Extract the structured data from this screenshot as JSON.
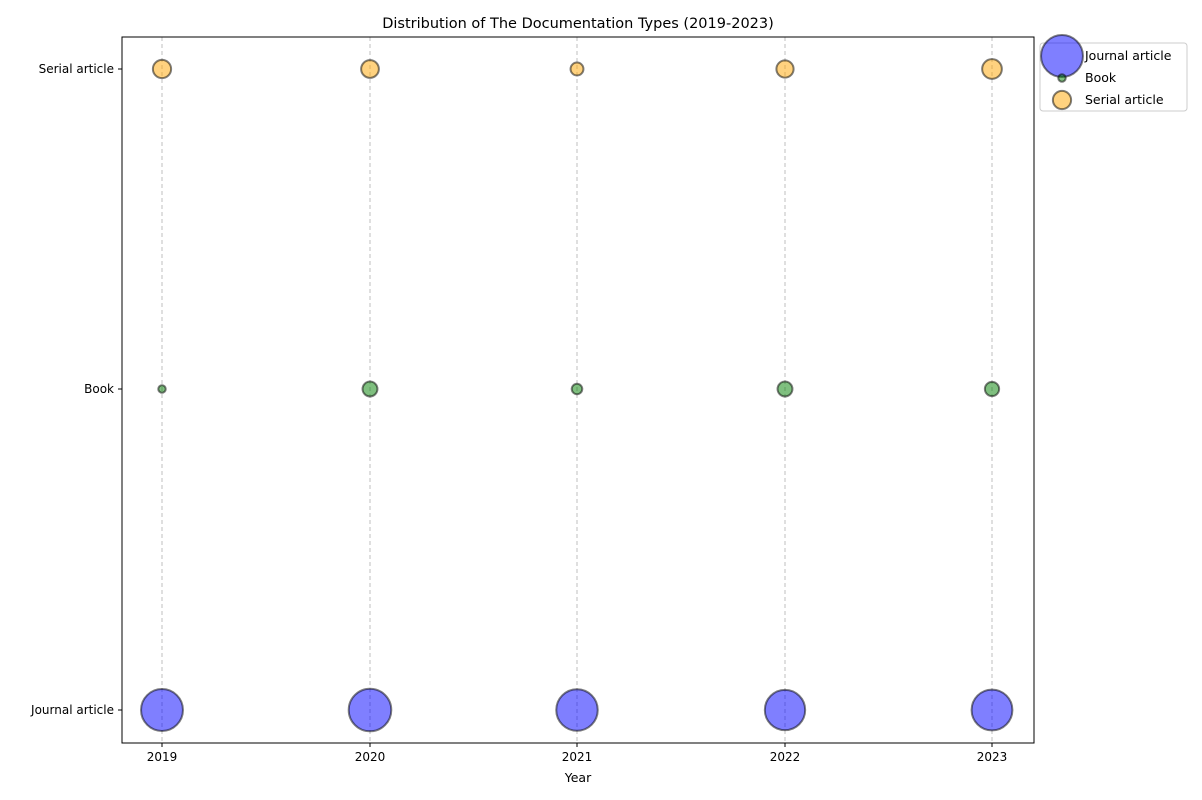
{
  "chart_data": {
    "type": "scatter",
    "title": "Distribution of The Documentation Types (2019-2023)",
    "xlabel": "Year",
    "ylabel": "",
    "x": [
      2019,
      2020,
      2021,
      2022,
      2023
    ],
    "x_tick_labels": [
      "2019",
      "2020",
      "2021",
      "2022",
      "2023"
    ],
    "categories": [
      "Journal article",
      "Book",
      "Serial article"
    ],
    "y_tick_labels": [
      "Journal article",
      "Book",
      "Serial article"
    ],
    "grid": "vertical dashed at each year",
    "legend_position": "upper-left outside right of axes",
    "series": [
      {
        "name": "Journal article",
        "color": "#0000ff",
        "sizes": [
          95,
          98,
          93,
          88,
          90
        ]
      },
      {
        "name": "Book",
        "color": "#008000",
        "sizes": [
          3,
          12,
          6,
          12,
          11
        ]
      },
      {
        "name": "Serial article",
        "color": "#ffa500",
        "sizes": [
          18,
          17,
          9,
          16,
          21
        ]
      }
    ]
  }
}
